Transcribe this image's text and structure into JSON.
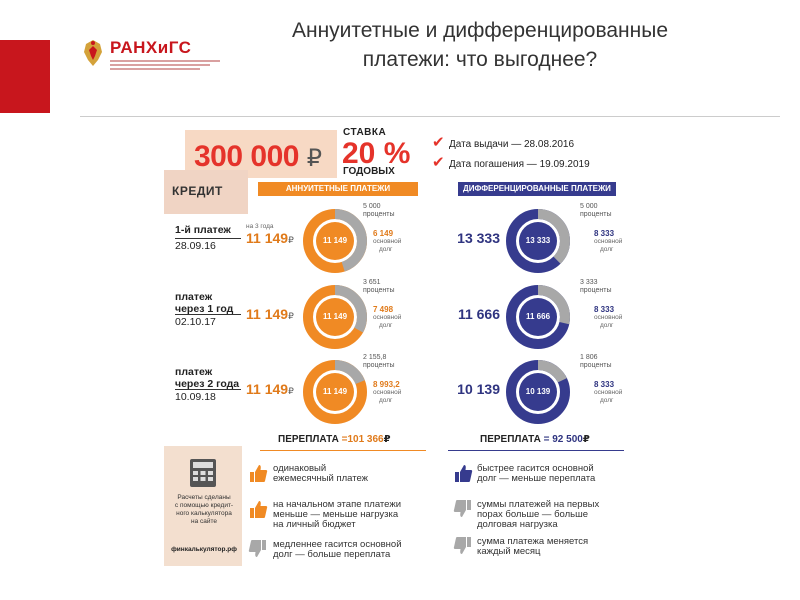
{
  "header": {
    "title_line1": "Аннуитетные и дифференцированные",
    "title_line2": "платежи: что выгоднее?",
    "logo_text": "РАНХиГС"
  },
  "loan": {
    "amount": "300 000",
    "currency": "₽",
    "rate_label": "СТАВКА",
    "rate": "20 %",
    "rate_sub": "ГОДОВЫХ",
    "issue_date": "Дата выдачи — 28.08.2016",
    "repay_date": "Дата погашения — 19.09.2019",
    "credit_label": "КРЕДИТ"
  },
  "columns": {
    "annuity": "АННУИТЕТНЫЕ ПЛАТЕЖИ",
    "diff": "ДИФФЕРЕНЦИРОВАННЫЕ ПЛАТЕЖИ"
  },
  "rows": [
    {
      "label1": "1-й платеж",
      "label2": "",
      "date": "28.09.16",
      "term_note": "на 3 года",
      "annuity_amount": "11 149",
      "annuity_center": "11 149",
      "annuity_interest": "5 000",
      "annuity_interest_label": "проценты",
      "annuity_principal": "6 149",
      "annuity_principal_label1": "основной",
      "annuity_principal_label2": "долг",
      "annuity_interest_frac": 0.45,
      "diff_amount": "13 333",
      "diff_center": "13 333",
      "diff_interest": "5 000",
      "diff_interest_label": "проценты",
      "diff_principal": "8 333",
      "diff_principal_label1": "основной",
      "diff_principal_label2": "долг",
      "diff_interest_frac": 0.375
    },
    {
      "label1": "платеж",
      "label2": "через 1 год",
      "date": "02.10.17",
      "term_note": "",
      "annuity_amount": "11 149",
      "annuity_center": "11 149",
      "annuity_interest": "3 651",
      "annuity_interest_label": "проценты",
      "annuity_principal": "7 498",
      "annuity_principal_label1": "основной",
      "annuity_principal_label2": "долг",
      "annuity_interest_frac": 0.33,
      "diff_amount": "11 666",
      "diff_center": "11 666",
      "diff_interest": "3 333",
      "diff_interest_label": "проценты",
      "diff_principal": "8 333",
      "diff_principal_label1": "основной",
      "diff_principal_label2": "долг",
      "diff_interest_frac": 0.286
    },
    {
      "label1": "платеж",
      "label2": "через 2 года",
      "date": "10.09.18",
      "term_note": "",
      "annuity_amount": "11 149",
      "annuity_center": "11 149",
      "annuity_interest": "2 155,8",
      "annuity_interest_label": "проценты",
      "annuity_principal": "8 993,2",
      "annuity_principal_label1": "основной",
      "annuity_principal_label2": "долг",
      "annuity_interest_frac": 0.19,
      "diff_amount": "10 139",
      "diff_center": "10 139",
      "diff_interest": "1 806",
      "diff_interest_label": "проценты",
      "diff_principal": "8 333",
      "diff_principal_label1": "основной",
      "diff_principal_label2": "долг",
      "diff_interest_frac": 0.178
    }
  ],
  "overpay": {
    "label": "ПЕРЕПЛАТА",
    "annuity": "=101 366",
    "diff": "= 92 500",
    "currency": "₽"
  },
  "calculator": {
    "text1": "Расчеты сделаны",
    "text2": "с помощью кредит-",
    "text3": "ного калькулятора",
    "text4": "на сайте",
    "site": "финкалькулятор.рф"
  },
  "features_annuity": [
    {
      "type": "up",
      "line1": "одинаковый",
      "line2": "ежемесячный платеж",
      "line3": ""
    },
    {
      "type": "up",
      "line1": "на начальном этапе платежи",
      "line2": "меньше — меньше нагрузка",
      "line3": "на личный бюджет"
    },
    {
      "type": "down",
      "line1": "медленнее гасится основной",
      "line2": "долг — больше переплата",
      "line3": ""
    }
  ],
  "features_diff": [
    {
      "type": "up",
      "line1": "быстрее гасится основной",
      "line2": "долг — меньше переплата",
      "line3": ""
    },
    {
      "type": "down",
      "line1": "суммы платежей на первых",
      "line2": "порах больше — больше",
      "line3": "долговая нагрузка"
    },
    {
      "type": "down",
      "line1": "сумма платежа меняется",
      "line2": "каждый месяц",
      "line3": ""
    }
  ],
  "colors": {
    "orange": "#f08a24",
    "navy": "#363b8e",
    "grey": "#a8a8a8",
    "red": "#e5332a"
  }
}
